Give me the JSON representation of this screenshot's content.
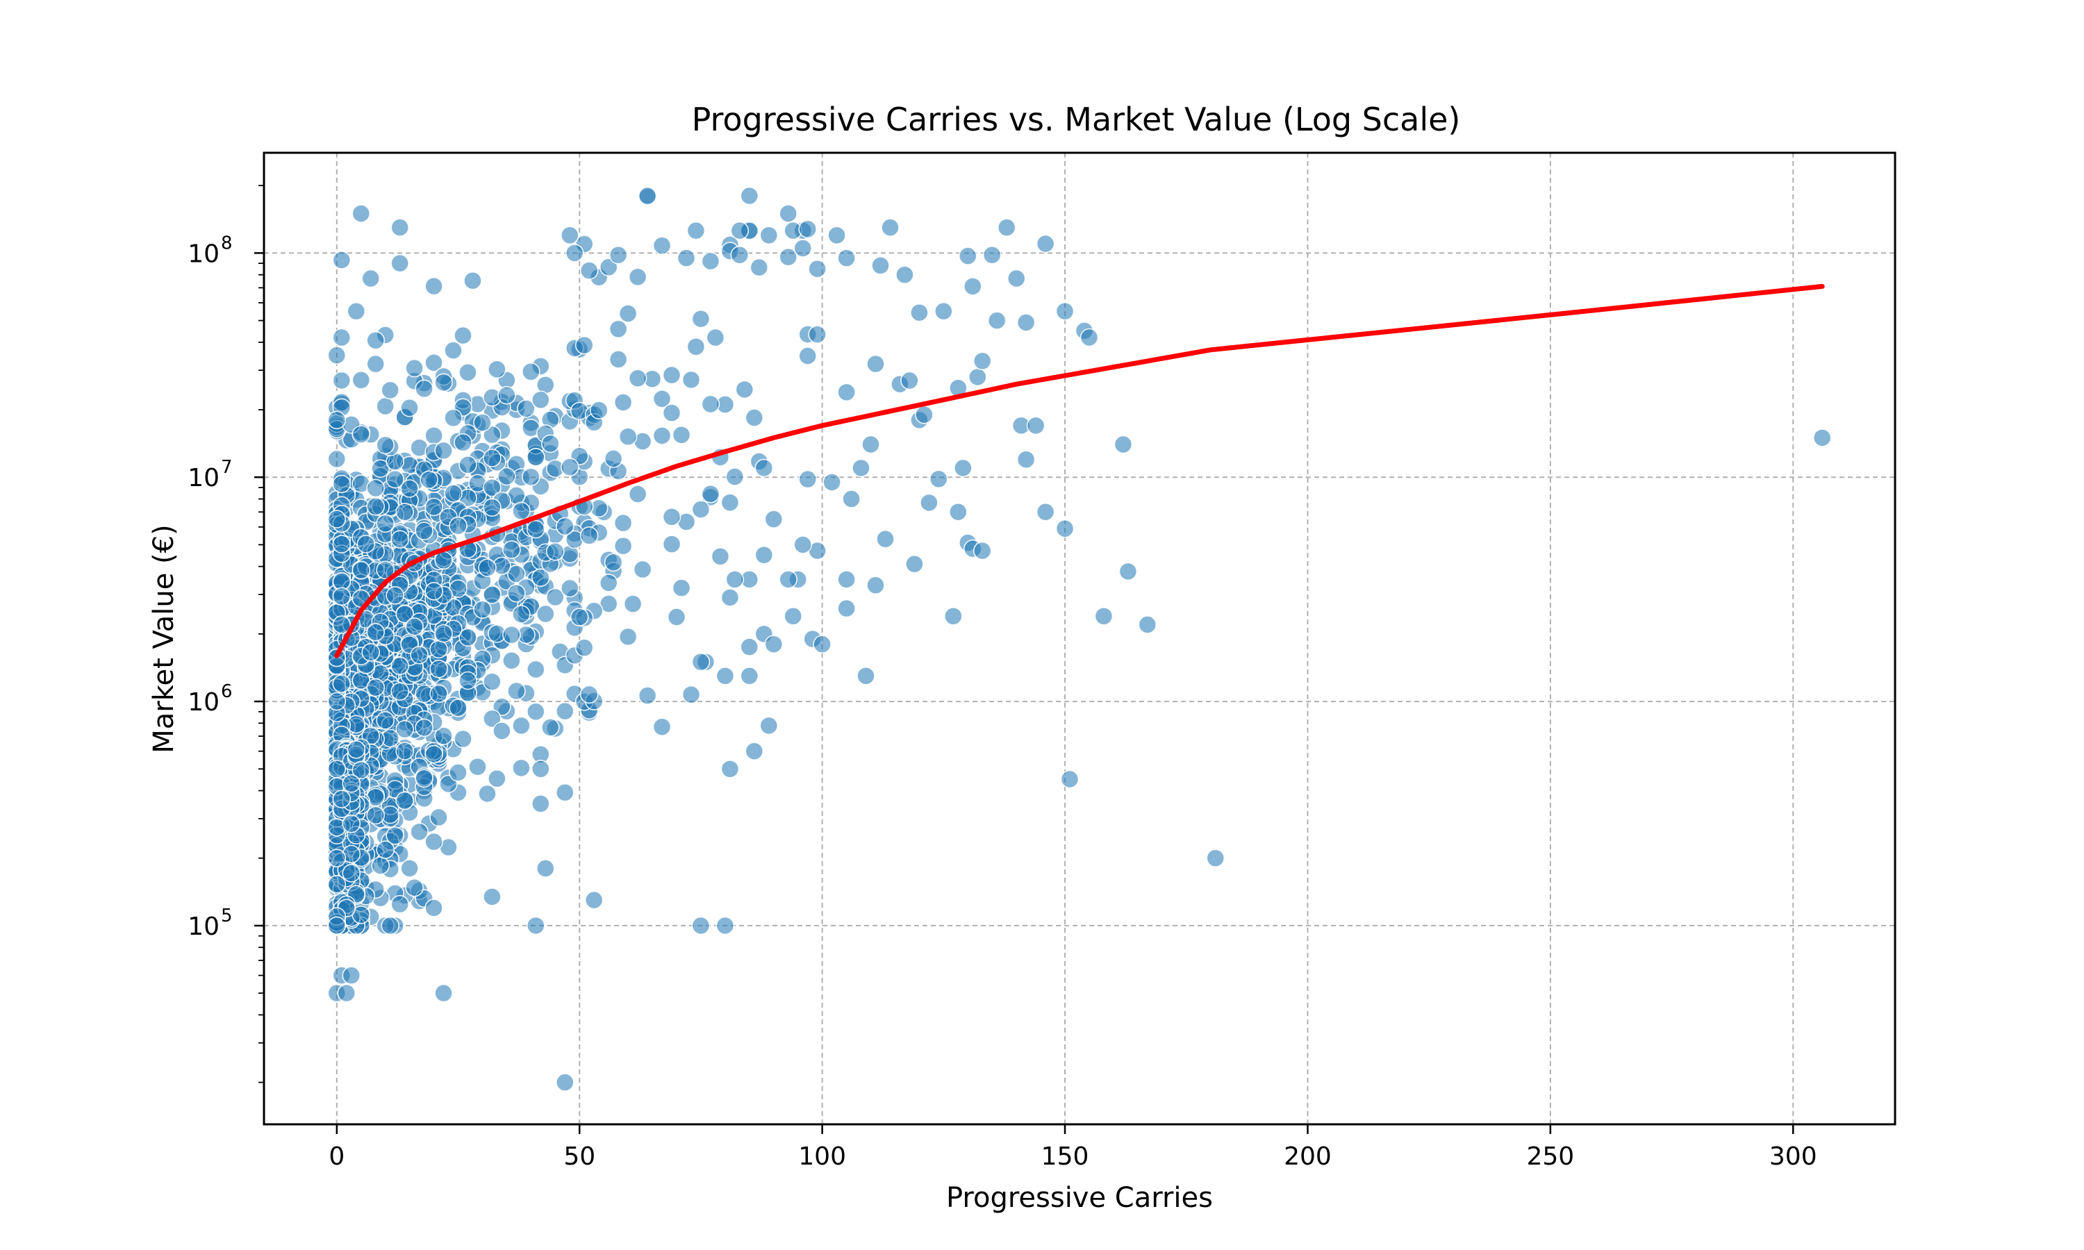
{
  "chart_data": {
    "type": "scatter",
    "title": "Progressive Carries vs. Market Value (Log Scale)",
    "xlabel": "Progressive Carries",
    "ylabel": "Market Value (€)",
    "x_ticks": [
      "0",
      "50",
      "100",
      "150",
      "200",
      "250",
      "300"
    ],
    "y_ticks": [
      {
        "base": "10",
        "exp": "5",
        "value": 100000
      },
      {
        "base": "10",
        "exp": "6",
        "value": 1000000
      },
      {
        "base": "10",
        "exp": "7",
        "value": 10000000
      },
      {
        "base": "10",
        "exp": "8",
        "value": 100000000
      }
    ],
    "xlim": [
      -15,
      321
    ],
    "ylim": [
      13000,
      280000000
    ],
    "y_scale": "log",
    "grid": true,
    "colors": {
      "points": "#1f77b4",
      "trend": "#ff0000"
    },
    "scatter_highlight": [
      [
        0,
        110000
      ],
      [
        0,
        100000
      ],
      [
        0,
        200000
      ],
      [
        0,
        500000
      ],
      [
        0,
        1000000
      ],
      [
        0,
        6500000
      ],
      [
        0,
        18000000
      ],
      [
        0,
        35000000
      ],
      [
        0,
        50000
      ],
      [
        1,
        60000
      ],
      [
        2,
        50000
      ],
      [
        3,
        60000
      ],
      [
        1,
        93000000
      ],
      [
        1,
        42000000
      ],
      [
        4,
        55000000
      ],
      [
        5,
        150000000
      ],
      [
        13,
        130000000
      ],
      [
        7,
        77000000
      ],
      [
        13,
        90000000
      ],
      [
        22,
        50000
      ],
      [
        47,
        20000
      ],
      [
        20,
        120000
      ],
      [
        41,
        100000
      ],
      [
        43,
        180000
      ],
      [
        42,
        500000
      ],
      [
        42,
        350000
      ],
      [
        53,
        130000
      ],
      [
        64,
        180000000
      ],
      [
        85,
        180000000
      ],
      [
        75,
        100000
      ],
      [
        80,
        100000
      ],
      [
        151,
        450000
      ],
      [
        181,
        200000
      ],
      [
        306,
        15000000
      ],
      [
        129,
        11000000
      ],
      [
        142,
        49000000
      ],
      [
        131,
        71000000
      ],
      [
        111,
        32000000
      ],
      [
        67,
        770000
      ],
      [
        88,
        11000000
      ],
      [
        97,
        128000000
      ],
      [
        49,
        100000000
      ]
    ],
    "scatter_outliers": [
      [
        48,
        120000000
      ],
      [
        64,
        178000000
      ],
      [
        67,
        108000000
      ],
      [
        58,
        98000000
      ],
      [
        72,
        95000000
      ],
      [
        77,
        92000000
      ],
      [
        81,
        102000000
      ],
      [
        83,
        98000000
      ],
      [
        89,
        120000000
      ],
      [
        93,
        150000000
      ],
      [
        96,
        105000000
      ],
      [
        99,
        85000000
      ],
      [
        103,
        120000000
      ],
      [
        105,
        95000000
      ],
      [
        114,
        130000000
      ],
      [
        112,
        88000000
      ],
      [
        117,
        80000000
      ],
      [
        125,
        55000000
      ],
      [
        130,
        97000000
      ],
      [
        135,
        98000000
      ],
      [
        138,
        130000000
      ],
      [
        140,
        77000000
      ],
      [
        146,
        110000000
      ],
      [
        150,
        55000000
      ],
      [
        154,
        45000000
      ],
      [
        155,
        42000000
      ],
      [
        136,
        50000000
      ],
      [
        128,
        25000000
      ],
      [
        132,
        28000000
      ],
      [
        133,
        33000000
      ],
      [
        141,
        17000000
      ],
      [
        144,
        17000000
      ],
      [
        142,
        12000000
      ],
      [
        162,
        14000000
      ],
      [
        146,
        7000000
      ],
      [
        150,
        5900000
      ],
      [
        163,
        3800000
      ],
      [
        158,
        2400000
      ],
      [
        167,
        2200000
      ],
      [
        127,
        2400000
      ],
      [
        128,
        7000000
      ],
      [
        130,
        5100000
      ],
      [
        131,
        4800000
      ],
      [
        133,
        4700000
      ],
      [
        122,
        7700000
      ],
      [
        119,
        4100000
      ],
      [
        113,
        5300000
      ],
      [
        111,
        3300000
      ],
      [
        105,
        3500000
      ],
      [
        109,
        1300000
      ],
      [
        105,
        2600000
      ],
      [
        98,
        1900000
      ],
      [
        100,
        1800000
      ],
      [
        99,
        4700000
      ],
      [
        95,
        3500000
      ],
      [
        96,
        5000000
      ],
      [
        93,
        3500000
      ],
      [
        94,
        2400000
      ],
      [
        90,
        6500000
      ],
      [
        89,
        780000
      ],
      [
        88,
        2000000
      ],
      [
        86,
        600000
      ],
      [
        81,
        500000
      ],
      [
        80,
        1300000
      ],
      [
        85,
        1300000
      ],
      [
        76,
        1500000
      ],
      [
        75,
        1500000
      ],
      [
        90,
        1800000
      ],
      [
        88,
        4500000
      ],
      [
        85,
        3500000
      ],
      [
        82,
        3500000
      ],
      [
        120,
        18000000
      ],
      [
        121,
        19000000
      ],
      [
        116,
        26000000
      ],
      [
        118,
        27000000
      ],
      [
        106,
        8000000
      ],
      [
        108,
        11000000
      ],
      [
        102,
        9500000
      ],
      [
        97,
        9800000
      ],
      [
        110,
        14000000
      ]
    ],
    "trend_line": {
      "x": [
        0,
        5,
        10,
        15,
        20,
        30,
        40,
        50,
        60,
        70,
        80,
        90,
        100,
        120,
        140,
        160,
        180,
        200,
        250,
        306
      ],
      "y": [
        1600000,
        2550000,
        3400000,
        4100000,
        4600000,
        5400000,
        6500000,
        7800000,
        9400000,
        11200000,
        13000000,
        15000000,
        17000000,
        21000000,
        26000000,
        31000000,
        37000000,
        41000000,
        53000000,
        71000000
      ]
    },
    "scatter_seed": 20240511,
    "scatter_count": 1850
  }
}
